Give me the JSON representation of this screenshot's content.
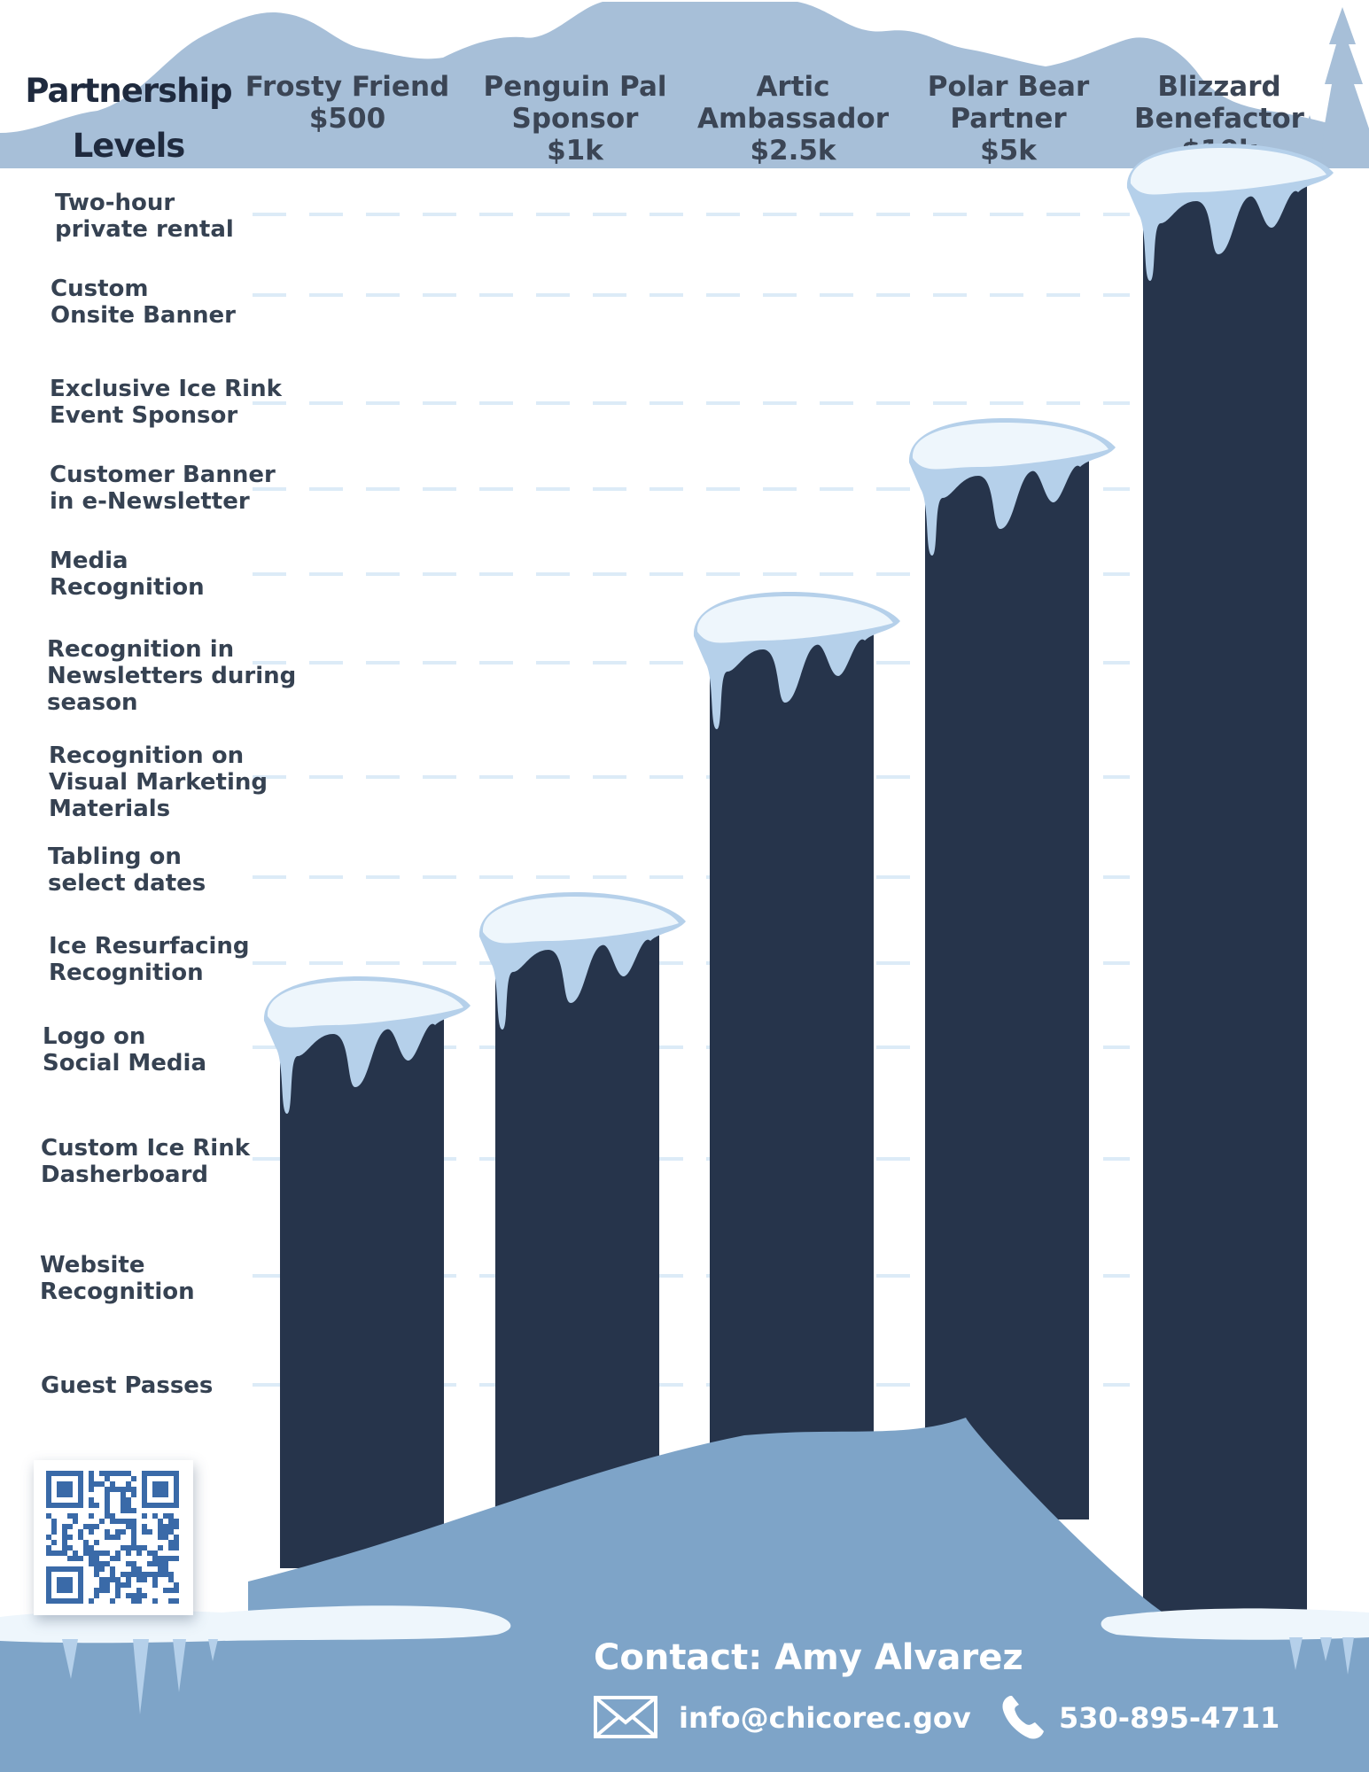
{
  "header": {
    "title": "Partnership\nLevels"
  },
  "levels": [
    {
      "label": "Frosty Friend\n$500",
      "tier": 4
    },
    {
      "label": "Penguin Pal\nSponsor\n$1k",
      "tier": 5
    },
    {
      "label": "Artic\nAmbassador\n$2.5k",
      "tier": 8
    },
    {
      "label": "Polar Bear\nPartner\n$5k",
      "tier": 10
    },
    {
      "label": "Blizzard\nBenefactor\n$10k",
      "tier": 13
    }
  ],
  "benefits": [
    "Two-hour\nprivate rental",
    "Custom\nOnsite Banner",
    "Exclusive Ice Rink\nEvent Sponsor",
    "Customer Banner\nin e-Newsletter",
    "Media\nRecognition",
    "Recognition in\nNewsletters during\nseason",
    "Recognition on\nVisual Marketing\nMaterials",
    "Tabling on\nselect dates",
    "Ice Resurfacing\nRecognition",
    "Logo on\nSocial Media",
    "Custom Ice Rink\nDasherboard",
    "Website\nRecognition",
    "Guest Passes"
  ],
  "contact": {
    "name": "Contact: Amy Alvarez",
    "email": "info@chicorec.gov",
    "phone": "530-895-4711",
    "email_icon": "envelope-icon",
    "phone_icon": "phone-icon"
  },
  "qr_code": {
    "icon": "qr-code-icon"
  },
  "colors": {
    "bar": "#26344b",
    "mountain": "#a7bfd8",
    "snow_mound": "#7ea4c8",
    "footer": "#7ea4c8",
    "snow": "#eef6fc",
    "snow_shade": "#b5d0ea",
    "grid_dash": "#dcebf7",
    "qr": "#3a6aa8"
  }
}
